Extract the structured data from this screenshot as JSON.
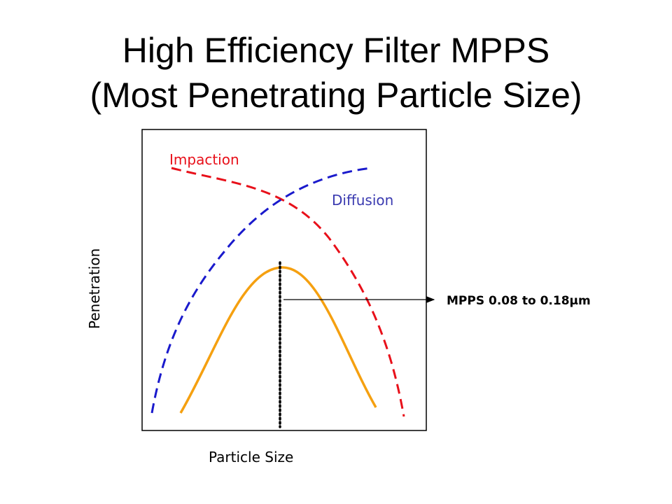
{
  "title": {
    "line1": "High Efficiency Filter MPPS",
    "line2": "(Most Penetrating Particle Size)"
  },
  "labels": {
    "impaction": "Impaction",
    "diffusion": "Diffusion",
    "penetration_axis": "Penetration",
    "particle_size_axis": "Particle Size",
    "mpps_annotation": "MPPS 0.08 to 0.18µm"
  },
  "colors": {
    "impaction": "#e8101a",
    "diffusion": "#1a1acc",
    "penetration_curve": "#f5a010",
    "text": "#000000"
  }
}
